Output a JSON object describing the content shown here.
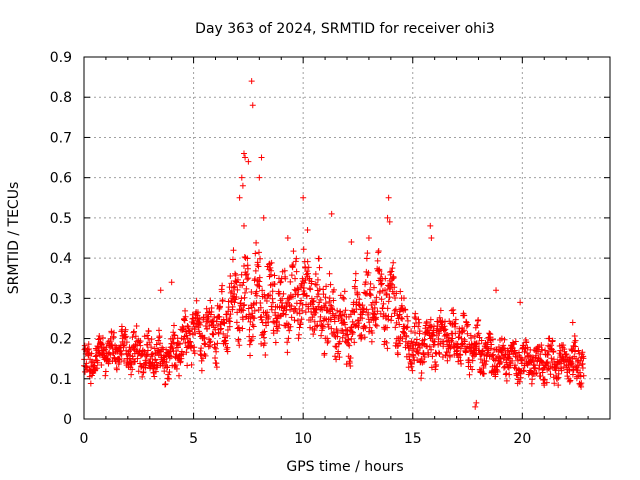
{
  "chart_data": {
    "type": "scatter",
    "title": "Day 363 of 2024, SRMTID for receiver ohi3",
    "xlabel": "GPS time / hours",
    "ylabel": "SRMTID / TECUs",
    "xlim": [
      0,
      24
    ],
    "ylim": [
      0,
      0.9
    ],
    "xticks": [
      0,
      5,
      10,
      15,
      20
    ],
    "yticks": [
      0,
      0.1,
      0.2,
      0.3,
      0.4,
      0.5,
      0.6,
      0.7,
      0.8,
      0.9
    ],
    "grid": true,
    "marker": "+",
    "color": "#ff0000",
    "series": [
      {
        "name": "SRMTID ohi3",
        "profile": {
          "x": [
            0,
            1,
            2,
            3,
            4,
            5,
            6,
            7,
            8,
            9,
            10,
            11,
            12,
            13,
            14,
            15,
            16,
            17,
            18,
            19,
            20,
            21,
            22,
            22.8
          ],
          "y": [
            0.13,
            0.17,
            0.17,
            0.16,
            0.15,
            0.21,
            0.22,
            0.3,
            0.3,
            0.28,
            0.32,
            0.27,
            0.22,
            0.29,
            0.3,
            0.17,
            0.2,
            0.2,
            0.17,
            0.15,
            0.14,
            0.14,
            0.14,
            0.14
          ],
          "spread": [
            0.05,
            0.05,
            0.05,
            0.05,
            0.06,
            0.07,
            0.08,
            0.1,
            0.12,
            0.1,
            0.1,
            0.09,
            0.08,
            0.1,
            0.1,
            0.07,
            0.06,
            0.06,
            0.06,
            0.05,
            0.05,
            0.05,
            0.05,
            0.05
          ]
        },
        "outliers": [
          [
            7.65,
            0.84
          ],
          [
            7.7,
            0.78
          ],
          [
            7.3,
            0.66
          ],
          [
            7.35,
            0.65
          ],
          [
            7.5,
            0.64
          ],
          [
            8.1,
            0.65
          ],
          [
            7.2,
            0.6
          ],
          [
            8.0,
            0.6
          ],
          [
            7.25,
            0.58
          ],
          [
            7.1,
            0.55
          ],
          [
            8.2,
            0.5
          ],
          [
            7.3,
            0.48
          ],
          [
            10.0,
            0.55
          ],
          [
            11.3,
            0.51
          ],
          [
            13.9,
            0.55
          ],
          [
            13.85,
            0.5
          ],
          [
            13.95,
            0.49
          ],
          [
            15.8,
            0.48
          ],
          [
            15.85,
            0.45
          ],
          [
            10.2,
            0.47
          ],
          [
            9.3,
            0.45
          ],
          [
            12.2,
            0.44
          ],
          [
            13.0,
            0.45
          ],
          [
            17.9,
            0.04
          ],
          [
            17.85,
            0.03
          ],
          [
            22.3,
            0.24
          ],
          [
            19.9,
            0.29
          ],
          [
            3.5,
            0.32
          ],
          [
            4.0,
            0.34
          ],
          [
            18.8,
            0.32
          ]
        ]
      }
    ]
  }
}
